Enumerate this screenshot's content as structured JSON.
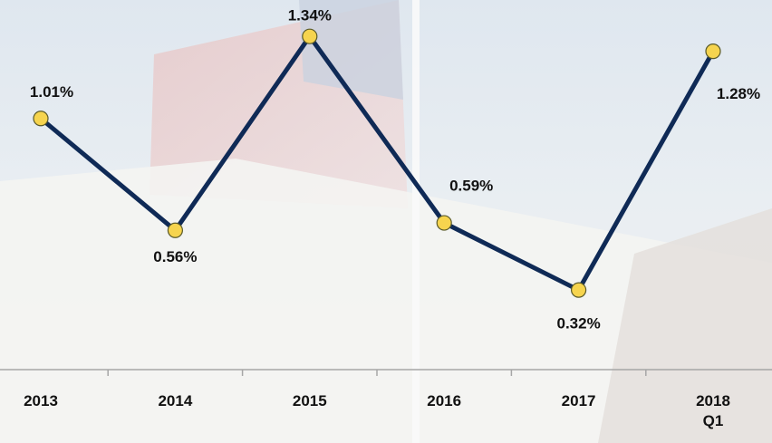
{
  "chart_data": {
    "type": "line",
    "categories": [
      "2013",
      "2014",
      "2015",
      "2016",
      "2017",
      "2018 Q1"
    ],
    "series": [
      {
        "color": "#0f2a56",
        "values": [
          1.01,
          0.56,
          1.34,
          0.59,
          0.32,
          1.28
        ],
        "value_labels": [
          "1.01%",
          "0.56%",
          "1.34%",
          "0.59%",
          "0.32%",
          "1.28%"
        ]
      }
    ],
    "marker_color": "#f6d44e",
    "ylim": [
      0,
      1.5
    ]
  }
}
